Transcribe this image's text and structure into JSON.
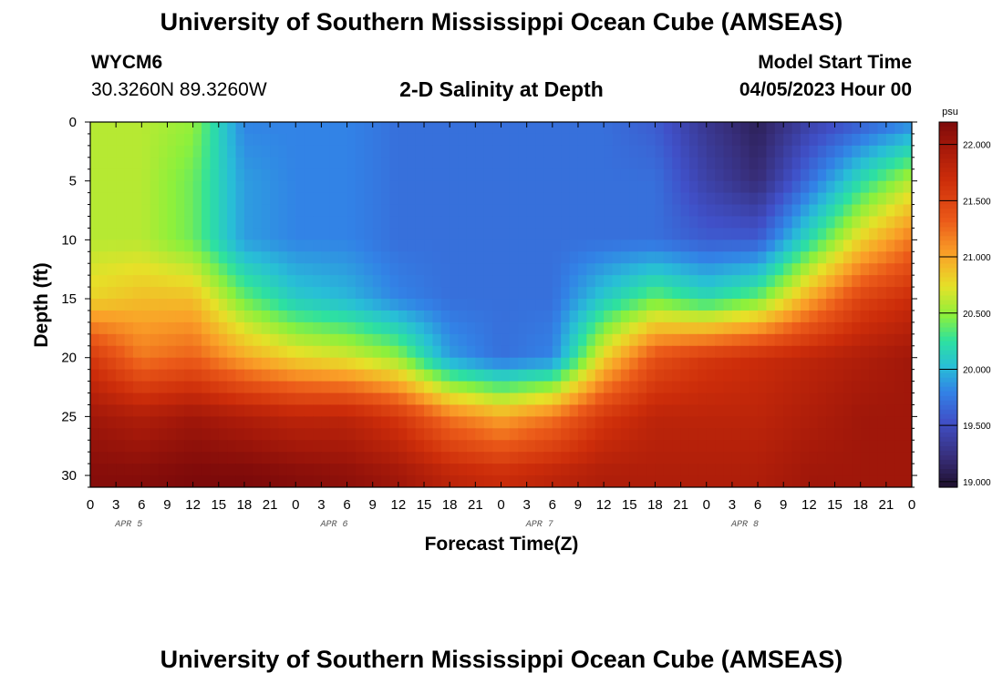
{
  "header": {
    "title": "University of Southern Mississippi Ocean Cube (AMSEAS)",
    "station_id": "WYCM6",
    "station_coords": "30.3260N  89.3260W",
    "subtitle": "2-D Salinity at Depth",
    "model_start_label": "Model Start Time",
    "model_start_value": "04/05/2023 Hour 00"
  },
  "footer": {
    "title": "University of Southern Mississippi Ocean Cube (AMSEAS)"
  },
  "chart_data": {
    "type": "heatmap",
    "xlabel": "Forecast Time(Z)",
    "ylabel": "Depth (ft)",
    "x_hours_range": [
      0,
      96
    ],
    "x_tick_labels": [
      "0",
      "3",
      "6",
      "9",
      "12",
      "15",
      "18",
      "21",
      "0",
      "3",
      "6",
      "9",
      "12",
      "15",
      "18",
      "21",
      "0",
      "3",
      "6",
      "9",
      "12",
      "15",
      "18",
      "21",
      "0",
      "3",
      "6",
      "9",
      "12",
      "15",
      "18",
      "21",
      "0"
    ],
    "day_labels": [
      "APR 5",
      "APR 6",
      "APR 7",
      "APR 8"
    ],
    "ylim": [
      0,
      31
    ],
    "y_ticks": [
      0,
      5,
      10,
      15,
      20,
      25,
      30
    ],
    "colorbar": {
      "unit": "psu",
      "range": [
        18.95,
        22.2
      ],
      "tick_values": [
        19.0,
        19.5,
        20.0,
        20.5,
        21.0,
        21.5,
        22.0
      ],
      "tick_labels": [
        "19.000",
        "19.500",
        "20.000",
        "20.500",
        "21.000",
        "21.500",
        "22.000"
      ]
    },
    "grid_x_hours": [
      0,
      6,
      12,
      18,
      24,
      30,
      36,
      42,
      48,
      54,
      60,
      66,
      72,
      78,
      84,
      90,
      96
    ],
    "grid_depths_ft": [
      0,
      5,
      10,
      15,
      20,
      25,
      30,
      31
    ],
    "salinity_psu": [
      [
        20.6,
        20.6,
        20.5,
        19.8,
        19.8,
        19.8,
        19.7,
        19.7,
        19.7,
        19.7,
        19.7,
        19.6,
        19.3,
        19.1,
        19.4,
        19.6,
        19.8
      ],
      [
        20.6,
        20.6,
        20.4,
        19.9,
        19.8,
        19.8,
        19.7,
        19.7,
        19.7,
        19.7,
        19.7,
        19.7,
        19.4,
        19.2,
        19.7,
        20.2,
        20.6
      ],
      [
        20.6,
        20.6,
        20.4,
        19.9,
        19.8,
        19.8,
        19.7,
        19.7,
        19.7,
        19.7,
        19.7,
        19.7,
        19.6,
        19.6,
        20.2,
        20.8,
        21.2
      ],
      [
        20.8,
        20.9,
        20.9,
        20.4,
        20.1,
        20.0,
        19.8,
        19.7,
        19.7,
        19.7,
        20.1,
        20.4,
        20.2,
        20.4,
        21.0,
        21.5,
        21.7
      ],
      [
        21.6,
        21.2,
        21.3,
        21.0,
        20.8,
        20.7,
        20.5,
        19.9,
        19.7,
        19.8,
        20.8,
        21.4,
        21.6,
        21.7,
        21.8,
        21.9,
        22.0
      ],
      [
        22.0,
        21.9,
        22.0,
        21.9,
        21.8,
        21.8,
        21.6,
        21.2,
        21.0,
        21.2,
        21.6,
        21.8,
        21.8,
        21.8,
        21.9,
        22.0,
        22.0
      ],
      [
        22.15,
        22.15,
        22.2,
        22.2,
        22.15,
        22.1,
        22.0,
        21.8,
        21.7,
        21.8,
        21.9,
        21.9,
        21.9,
        21.9,
        22.0,
        22.0,
        22.0
      ],
      [
        22.15,
        22.15,
        22.2,
        22.2,
        22.15,
        22.1,
        22.0,
        21.8,
        21.7,
        21.8,
        21.9,
        21.9,
        21.9,
        21.9,
        22.0,
        22.0,
        22.0
      ]
    ]
  }
}
